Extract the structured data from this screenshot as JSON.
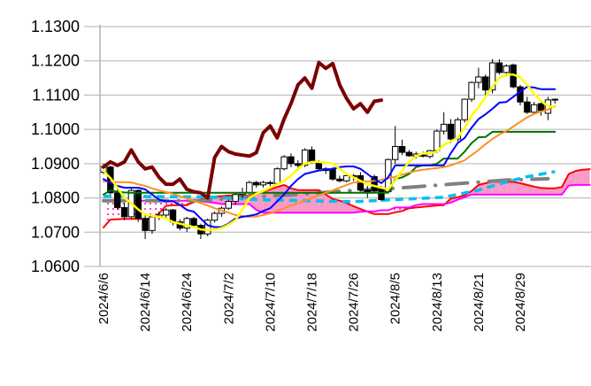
{
  "chart_data": {
    "type": "line",
    "subtype": "candlestick-ichimoku",
    "title": "",
    "xlabel": "",
    "ylabel": "",
    "ylim": [
      1.06,
      1.13
    ],
    "yticks": [
      "1.0600",
      "1.0700",
      "1.0800",
      "1.0900",
      "1.1000",
      "1.1100",
      "1.1200",
      "1.1300"
    ],
    "ytick_values": [
      1.06,
      1.07,
      1.08,
      1.09,
      1.1,
      1.11,
      1.12,
      1.13
    ],
    "xticks": [
      {
        "index": 0,
        "label": "2024/6/6"
      },
      {
        "index": 6,
        "label": "2024/6/14"
      },
      {
        "index": 12,
        "label": "2024/6/24"
      },
      {
        "index": 18,
        "label": "2024/7/2"
      },
      {
        "index": 24,
        "label": "2024/7/10"
      },
      {
        "index": 30,
        "label": "2024/7/18"
      },
      {
        "index": 36,
        "label": "2024/7/26"
      },
      {
        "index": 42,
        "label": "2024/8/5"
      },
      {
        "index": 48,
        "label": "2024/8/13"
      },
      {
        "index": 54,
        "label": "2024/8/21"
      },
      {
        "index": 60,
        "label": "2024/8/29"
      }
    ],
    "x_range": [
      0,
      70
    ],
    "grid": "horizontal",
    "legend": "none",
    "candles_ohlc": [
      [
        1.0875,
        1.09,
        1.087,
        1.0892
      ],
      [
        1.089,
        1.0895,
        1.081,
        1.0815
      ],
      [
        1.0815,
        1.083,
        1.0765,
        1.0772
      ],
      [
        1.0772,
        1.0785,
        1.0735,
        1.0745
      ],
      [
        1.0745,
        1.083,
        1.074,
        1.0822
      ],
      [
        1.0822,
        1.0825,
        1.073,
        1.074
      ],
      [
        1.074,
        1.075,
        1.068,
        1.0705
      ],
      [
        1.0705,
        1.075,
        1.0695,
        1.0745
      ],
      [
        1.0745,
        1.076,
        1.0735,
        1.075
      ],
      [
        1.075,
        1.077,
        1.074,
        1.0765
      ],
      [
        1.0765,
        1.0768,
        1.072,
        1.073
      ],
      [
        1.073,
        1.0738,
        1.0705,
        1.0712
      ],
      [
        1.0712,
        1.0745,
        1.07,
        1.074
      ],
      [
        1.074,
        1.0745,
        1.0715,
        1.072
      ],
      [
        1.072,
        1.0725,
        1.068,
        1.0695
      ],
      [
        1.0695,
        1.074,
        1.0688,
        1.0735
      ],
      [
        1.0735,
        1.076,
        1.0728,
        1.0755
      ],
      [
        1.0755,
        1.0775,
        1.0745,
        1.077
      ],
      [
        1.077,
        1.0795,
        1.0765,
        1.079
      ],
      [
        1.079,
        1.0815,
        1.078,
        1.081
      ],
      [
        1.081,
        1.083,
        1.08,
        1.0815
      ],
      [
        1.0815,
        1.085,
        1.081,
        1.0845
      ],
      [
        1.0845,
        1.085,
        1.083,
        1.0838
      ],
      [
        1.0838,
        1.085,
        1.083,
        1.0845
      ],
      [
        1.0845,
        1.085,
        1.0835,
        1.0842
      ],
      [
        1.0842,
        1.089,
        1.084,
        1.0885
      ],
      [
        1.0885,
        1.0925,
        1.088,
        1.092
      ],
      [
        1.092,
        1.093,
        1.089,
        1.09
      ],
      [
        1.09,
        1.091,
        1.088,
        1.0895
      ],
      [
        1.0895,
        1.0945,
        1.089,
        1.094
      ],
      [
        1.094,
        1.095,
        1.09,
        1.0905
      ],
      [
        1.0905,
        1.091,
        1.088,
        1.0885
      ],
      [
        1.0885,
        1.089,
        1.087,
        1.088
      ],
      [
        1.0885,
        1.089,
        1.085,
        1.0855
      ],
      [
        1.0855,
        1.0865,
        1.0845,
        1.085
      ],
      [
        1.085,
        1.087,
        1.0845,
        1.0865
      ],
      [
        1.0865,
        1.087,
        1.085,
        1.0862
      ],
      [
        1.0865,
        1.0875,
        1.082,
        1.0823
      ],
      [
        1.0823,
        1.0835,
        1.08,
        1.0815
      ],
      [
        1.0862,
        1.0868,
        1.0815,
        1.082
      ],
      [
        1.0828,
        1.0835,
        1.079,
        1.0795
      ],
      [
        1.0818,
        1.0915,
        1.0815,
        1.0912
      ],
      [
        1.0912,
        1.101,
        1.09,
        1.095
      ],
      [
        1.095,
        1.097,
        1.0925,
        1.0933
      ],
      [
        1.0933,
        1.094,
        1.092,
        1.0923
      ],
      [
        1.0922,
        1.0935,
        1.0915,
        1.0928
      ],
      [
        1.0925,
        1.0935,
        1.0918,
        1.0922
      ],
      [
        1.0921,
        1.094,
        1.0915,
        1.0938
      ],
      [
        1.0938,
        1.1,
        1.093,
        1.0995
      ],
      [
        1.0995,
        1.105,
        1.0985,
        1.1015
      ],
      [
        1.1015,
        1.103,
        1.096,
        1.0972
      ],
      [
        1.0972,
        1.1035,
        1.0965,
        1.1028
      ],
      [
        1.1028,
        1.109,
        1.102,
        1.1088
      ],
      [
        1.1088,
        1.114,
        1.108,
        1.1137
      ],
      [
        1.1137,
        1.118,
        1.112,
        1.1153
      ],
      [
        1.1153,
        1.116,
        1.11,
        1.1115
      ],
      [
        1.1115,
        1.1205,
        1.1105,
        1.1194
      ],
      [
        1.1194,
        1.1205,
        1.116,
        1.1166
      ],
      [
        1.1166,
        1.119,
        1.1155,
        1.1185
      ],
      [
        1.1188,
        1.1192,
        1.112,
        1.1124
      ],
      [
        1.1124,
        1.113,
        1.107,
        1.108
      ],
      [
        1.108,
        1.1095,
        1.1045,
        1.105
      ],
      [
        1.105,
        1.108,
        1.1045,
        1.1072
      ],
      [
        1.1075,
        1.108,
        1.104,
        1.1055
      ],
      [
        1.1047,
        1.1095,
        1.1027,
        1.1086
      ],
      [
        1.1087,
        1.109,
        1.1075,
        1.1088
      ]
    ],
    "series": [
      {
        "name": "span-a",
        "color": "#ff0000",
        "width": 2,
        "values": [
          1.0714,
          1.0737,
          1.0738,
          1.0739,
          1.0739,
          1.0739,
          1.0739,
          1.0739,
          1.0755,
          1.0777,
          1.0779,
          1.0779,
          1.0779,
          1.0788,
          1.0796,
          1.08,
          1.0804,
          1.0805,
          1.0807,
          1.0807,
          1.0807,
          1.0807,
          1.0812,
          1.0818,
          1.0825,
          1.0832,
          1.0838,
          1.0828,
          1.0823,
          1.0823,
          1.0823,
          1.0823,
          1.081,
          1.0797,
          1.0792,
          1.0785,
          1.0776,
          1.0768,
          1.076,
          1.0753,
          1.0753,
          1.0753,
          1.0758,
          1.0762,
          1.077,
          1.0772,
          1.0774,
          1.0776,
          1.0778,
          1.0779,
          1.0798,
          1.0802,
          1.0808,
          1.082,
          1.0838,
          1.0843,
          1.0847,
          1.0847,
          1.0847,
          1.0847,
          1.0843,
          1.0838,
          1.0833,
          1.0829,
          1.0828,
          1.0828,
          1.0832,
          1.087,
          1.0879,
          1.0882,
          1.0884
        ]
      },
      {
        "name": "span-b",
        "color": "#ff00ff",
        "width": 2,
        "values": [
          1.0792,
          1.0792,
          1.0792,
          1.0792,
          1.0792,
          1.0792,
          1.0792,
          1.0792,
          1.0792,
          1.0792,
          1.0792,
          1.0792,
          1.0792,
          1.0792,
          1.079,
          1.0788,
          1.0786,
          1.0782,
          1.0782,
          1.0782,
          1.0782,
          1.0782,
          1.0765,
          1.0757,
          1.0757,
          1.0757,
          1.0757,
          1.0757,
          1.0757,
          1.0757,
          1.0757,
          1.0757,
          1.0757,
          1.0757,
          1.0757,
          1.0757,
          1.0757,
          1.076,
          1.0761,
          1.0761,
          1.0764,
          1.0764,
          1.0772,
          1.0772,
          1.0772,
          1.0779,
          1.0782,
          1.0782,
          1.0782,
          1.0782,
          1.0786,
          1.0795,
          1.0802,
          1.081,
          1.081,
          1.081,
          1.081,
          1.081,
          1.081,
          1.081,
          1.081,
          1.081,
          1.081,
          1.081,
          1.081,
          1.081,
          1.081,
          1.0836,
          1.0838,
          1.0838,
          1.0838
        ]
      },
      {
        "name": "gray-dashdot",
        "color": "#808080",
        "width": 4,
        "points": [
          [
            0,
            1.0792
          ],
          [
            14,
            1.0792
          ],
          [
            20,
            1.0802
          ],
          [
            28,
            1.081
          ],
          [
            33,
            1.0818
          ],
          [
            36,
            1.0822
          ],
          [
            42,
            1.0828
          ],
          [
            52,
            1.0843
          ],
          [
            58,
            1.0852
          ],
          [
            64,
            1.0856
          ]
        ]
      },
      {
        "name": "cyan-dashed",
        "color": "#00c0f0",
        "width": 3.5,
        "points": [
          [
            0,
            1.0805
          ],
          [
            15,
            1.0803
          ],
          [
            22,
            1.0795
          ],
          [
            36,
            1.0789
          ],
          [
            44,
            1.0797
          ],
          [
            49,
            1.0802
          ],
          [
            51,
            1.081
          ],
          [
            54,
            1.0823
          ],
          [
            57,
            1.0841
          ],
          [
            61,
            1.0862
          ],
          [
            65,
            1.0877
          ]
        ]
      },
      {
        "name": "kijun",
        "color": "#007000",
        "width": 2,
        "values": [
          1.081,
          1.0822,
          1.0818,
          1.0816,
          1.0815,
          1.0815,
          1.0815,
          1.0815,
          1.0815,
          1.0815,
          1.0815,
          1.0815,
          1.0815,
          1.0815,
          1.0815,
          1.0815,
          1.0815,
          1.0815,
          1.0815,
          1.0815,
          1.0815,
          1.0815,
          1.0815,
          1.0815,
          1.0815,
          1.0815,
          1.0815,
          1.0815,
          1.0815,
          1.0815,
          1.0815,
          1.0815,
          1.0815,
          1.0815,
          1.0815,
          1.0815,
          1.0815,
          1.0815,
          1.0815,
          1.0815,
          1.0815,
          1.0815,
          1.0855,
          1.086,
          1.087,
          1.089,
          1.0895,
          1.0895,
          1.09,
          1.0915,
          1.0915,
          1.0915,
          1.0935,
          1.096,
          1.0977,
          1.0978,
          1.0993,
          1.0993,
          1.0993,
          1.0993,
          1.0993,
          1.0993,
          1.0993,
          1.0993,
          1.0993,
          1.0993
        ]
      },
      {
        "name": "long-ma",
        "color": "#ff9020",
        "width": 2,
        "values": [
          1.0848,
          1.0847,
          1.0846,
          1.0846,
          1.0845,
          1.084,
          1.0835,
          1.0828,
          1.0822,
          1.0817,
          1.0812,
          1.0805,
          1.0798,
          1.0792,
          1.0785,
          1.0778,
          1.077,
          1.0763,
          1.0757,
          1.075,
          1.0747,
          1.0745,
          1.0746,
          1.075,
          1.0755,
          1.0762,
          1.077,
          1.0778,
          1.0785,
          1.0792,
          1.08,
          1.0808,
          1.0815,
          1.0822,
          1.083,
          1.0838,
          1.0845,
          1.0847,
          1.0848,
          1.085,
          1.0853,
          1.0857,
          1.0862,
          1.0868,
          1.0874,
          1.0879,
          1.0882,
          1.0885,
          1.0887,
          1.089,
          1.0895,
          1.0902,
          1.091,
          1.0925,
          1.094,
          1.0957,
          1.0972,
          1.0985,
          1.0995,
          1.1008,
          1.1022,
          1.1035,
          1.1045,
          1.1052,
          1.1058,
          1.1068
        ]
      },
      {
        "name": "tenkan",
        "color": "#0000ff",
        "width": 2,
        "values": [
          1.0855,
          1.0845,
          1.0835,
          1.083,
          1.083,
          1.083,
          1.0825,
          1.081,
          1.0795,
          1.079,
          1.079,
          1.078,
          1.0765,
          1.076,
          1.074,
          1.072,
          1.0715,
          1.0715,
          1.0725,
          1.074,
          1.0745,
          1.0748,
          1.0752,
          1.0762,
          1.077,
          1.079,
          1.081,
          1.0835,
          1.0855,
          1.087,
          1.0875,
          1.088,
          1.0882,
          1.0885,
          1.089,
          1.0892,
          1.0892,
          1.0885,
          1.087,
          1.0855,
          1.0843,
          1.086,
          1.0895,
          1.0895,
          1.0895,
          1.0895,
          1.0895,
          1.0895,
          1.0895,
          1.0895,
          1.093,
          1.096,
          1.0975,
          1.1005,
          1.103,
          1.1044,
          1.106,
          1.1078,
          1.108,
          1.1095,
          1.111,
          1.1124,
          1.1122,
          1.1117,
          1.1117,
          1.1117
        ]
      },
      {
        "name": "short-ma",
        "color": "#ffff00",
        "width": 2.5,
        "values": [
          1.0879,
          1.0858,
          1.083,
          1.08,
          1.0785,
          1.0766,
          1.0752,
          1.0748,
          1.0745,
          1.074,
          1.073,
          1.0725,
          1.072,
          1.0715,
          1.0708,
          1.0707,
          1.0708,
          1.0712,
          1.0722,
          1.0735,
          1.0765,
          1.08,
          1.0812,
          1.082,
          1.083,
          1.084,
          1.085,
          1.0865,
          1.0885,
          1.09,
          1.0905,
          1.0905,
          1.0903,
          1.09,
          1.0885,
          1.087,
          1.086,
          1.085,
          1.084,
          1.0835,
          1.083,
          1.0825,
          1.085,
          1.088,
          1.0905,
          1.0922,
          1.093,
          1.093,
          1.0935,
          1.0955,
          1.0965,
          1.0975,
          1.1005,
          1.104,
          1.1065,
          1.1095,
          1.1125,
          1.115,
          1.116,
          1.116,
          1.1152,
          1.113,
          1.1105,
          1.1082,
          1.1068,
          1.1065
        ]
      },
      {
        "name": "chikou",
        "color": "#7b0000",
        "width": 4,
        "values": [
          1.089,
          1.0905,
          1.0895,
          1.0905,
          1.094,
          1.0905,
          1.0885,
          1.089,
          1.086,
          1.084,
          1.084,
          1.0855,
          1.0825,
          1.0818,
          1.0815,
          1.08,
          1.0918,
          1.095,
          1.0935,
          1.0928,
          1.0925,
          1.0922,
          1.0932,
          1.099,
          1.101,
          1.0975,
          1.103,
          1.1075,
          1.113,
          1.115,
          1.112,
          1.1195,
          1.1178,
          1.1192,
          1.113,
          1.109,
          1.106,
          1.1075,
          1.105,
          1.1082,
          1.1085
        ]
      }
    ]
  }
}
